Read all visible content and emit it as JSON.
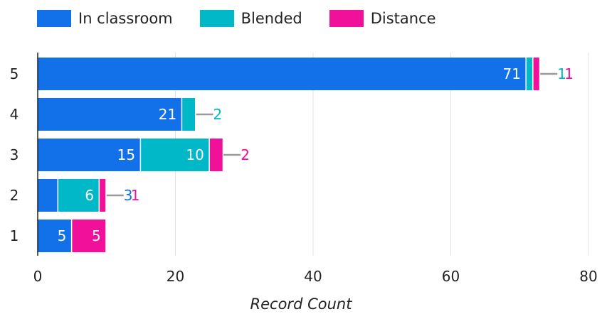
{
  "chart_data": {
    "type": "bar",
    "orientation": "horizontal",
    "stacked": true,
    "categories": [
      "5",
      "4",
      "3",
      "2",
      "1"
    ],
    "series": [
      {
        "name": "In classroom",
        "color": "#1271e8",
        "values": [
          71,
          21,
          15,
          3,
          5
        ]
      },
      {
        "name": "Blended",
        "color": "#00b8c8",
        "values": [
          1,
          2,
          10,
          6,
          0
        ]
      },
      {
        "name": "Distance",
        "color": "#f0109a",
        "values": [
          1,
          0,
          2,
          1,
          5
        ]
      }
    ],
    "xlabel": "Record Count",
    "xlim": [
      0,
      80
    ],
    "xticks": [
      "0",
      "20",
      "40",
      "60",
      "80"
    ],
    "grid": "vertical",
    "legend_position": "top-left"
  }
}
